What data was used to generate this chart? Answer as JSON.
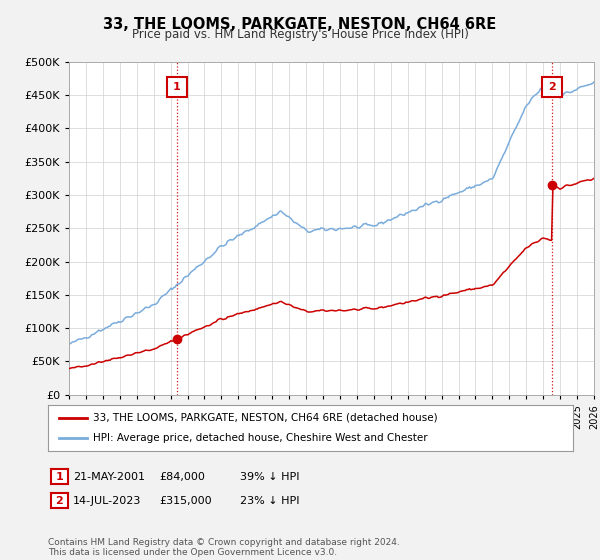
{
  "title": "33, THE LOOMS, PARKGATE, NESTON, CH64 6RE",
  "subtitle": "Price paid vs. HM Land Registry's House Price Index (HPI)",
  "legend_line1": "33, THE LOOMS, PARKGATE, NESTON, CH64 6RE (detached house)",
  "legend_line2": "HPI: Average price, detached house, Cheshire West and Chester",
  "annotation1_date": "21-MAY-2001",
  "annotation1_price": "£84,000",
  "annotation1_hpi": "39% ↓ HPI",
  "annotation2_date": "14-JUL-2023",
  "annotation2_price": "£315,000",
  "annotation2_hpi": "23% ↓ HPI",
  "footer": "Contains HM Land Registry data © Crown copyright and database right 2024.\nThis data is licensed under the Open Government Licence v3.0.",
  "hpi_color": "#7aacdc",
  "price_color": "#cc0000",
  "annotation_box_color": "#cc0000",
  "ylim": [
    0,
    500000
  ],
  "yticks": [
    0,
    50000,
    100000,
    150000,
    200000,
    250000,
    300000,
    350000,
    400000,
    450000,
    500000
  ],
  "background_color": "#f2f2f2",
  "plot_bg_color": "#ffffff",
  "sale1_t": 2001.375,
  "sale1_v": 84000,
  "sale2_t": 2023.54,
  "sale2_v": 315000,
  "ann1_t": 2001.375,
  "ann2_t": 2023.54,
  "ann_v": 462000,
  "xmin": 1995,
  "xmax": 2026
}
